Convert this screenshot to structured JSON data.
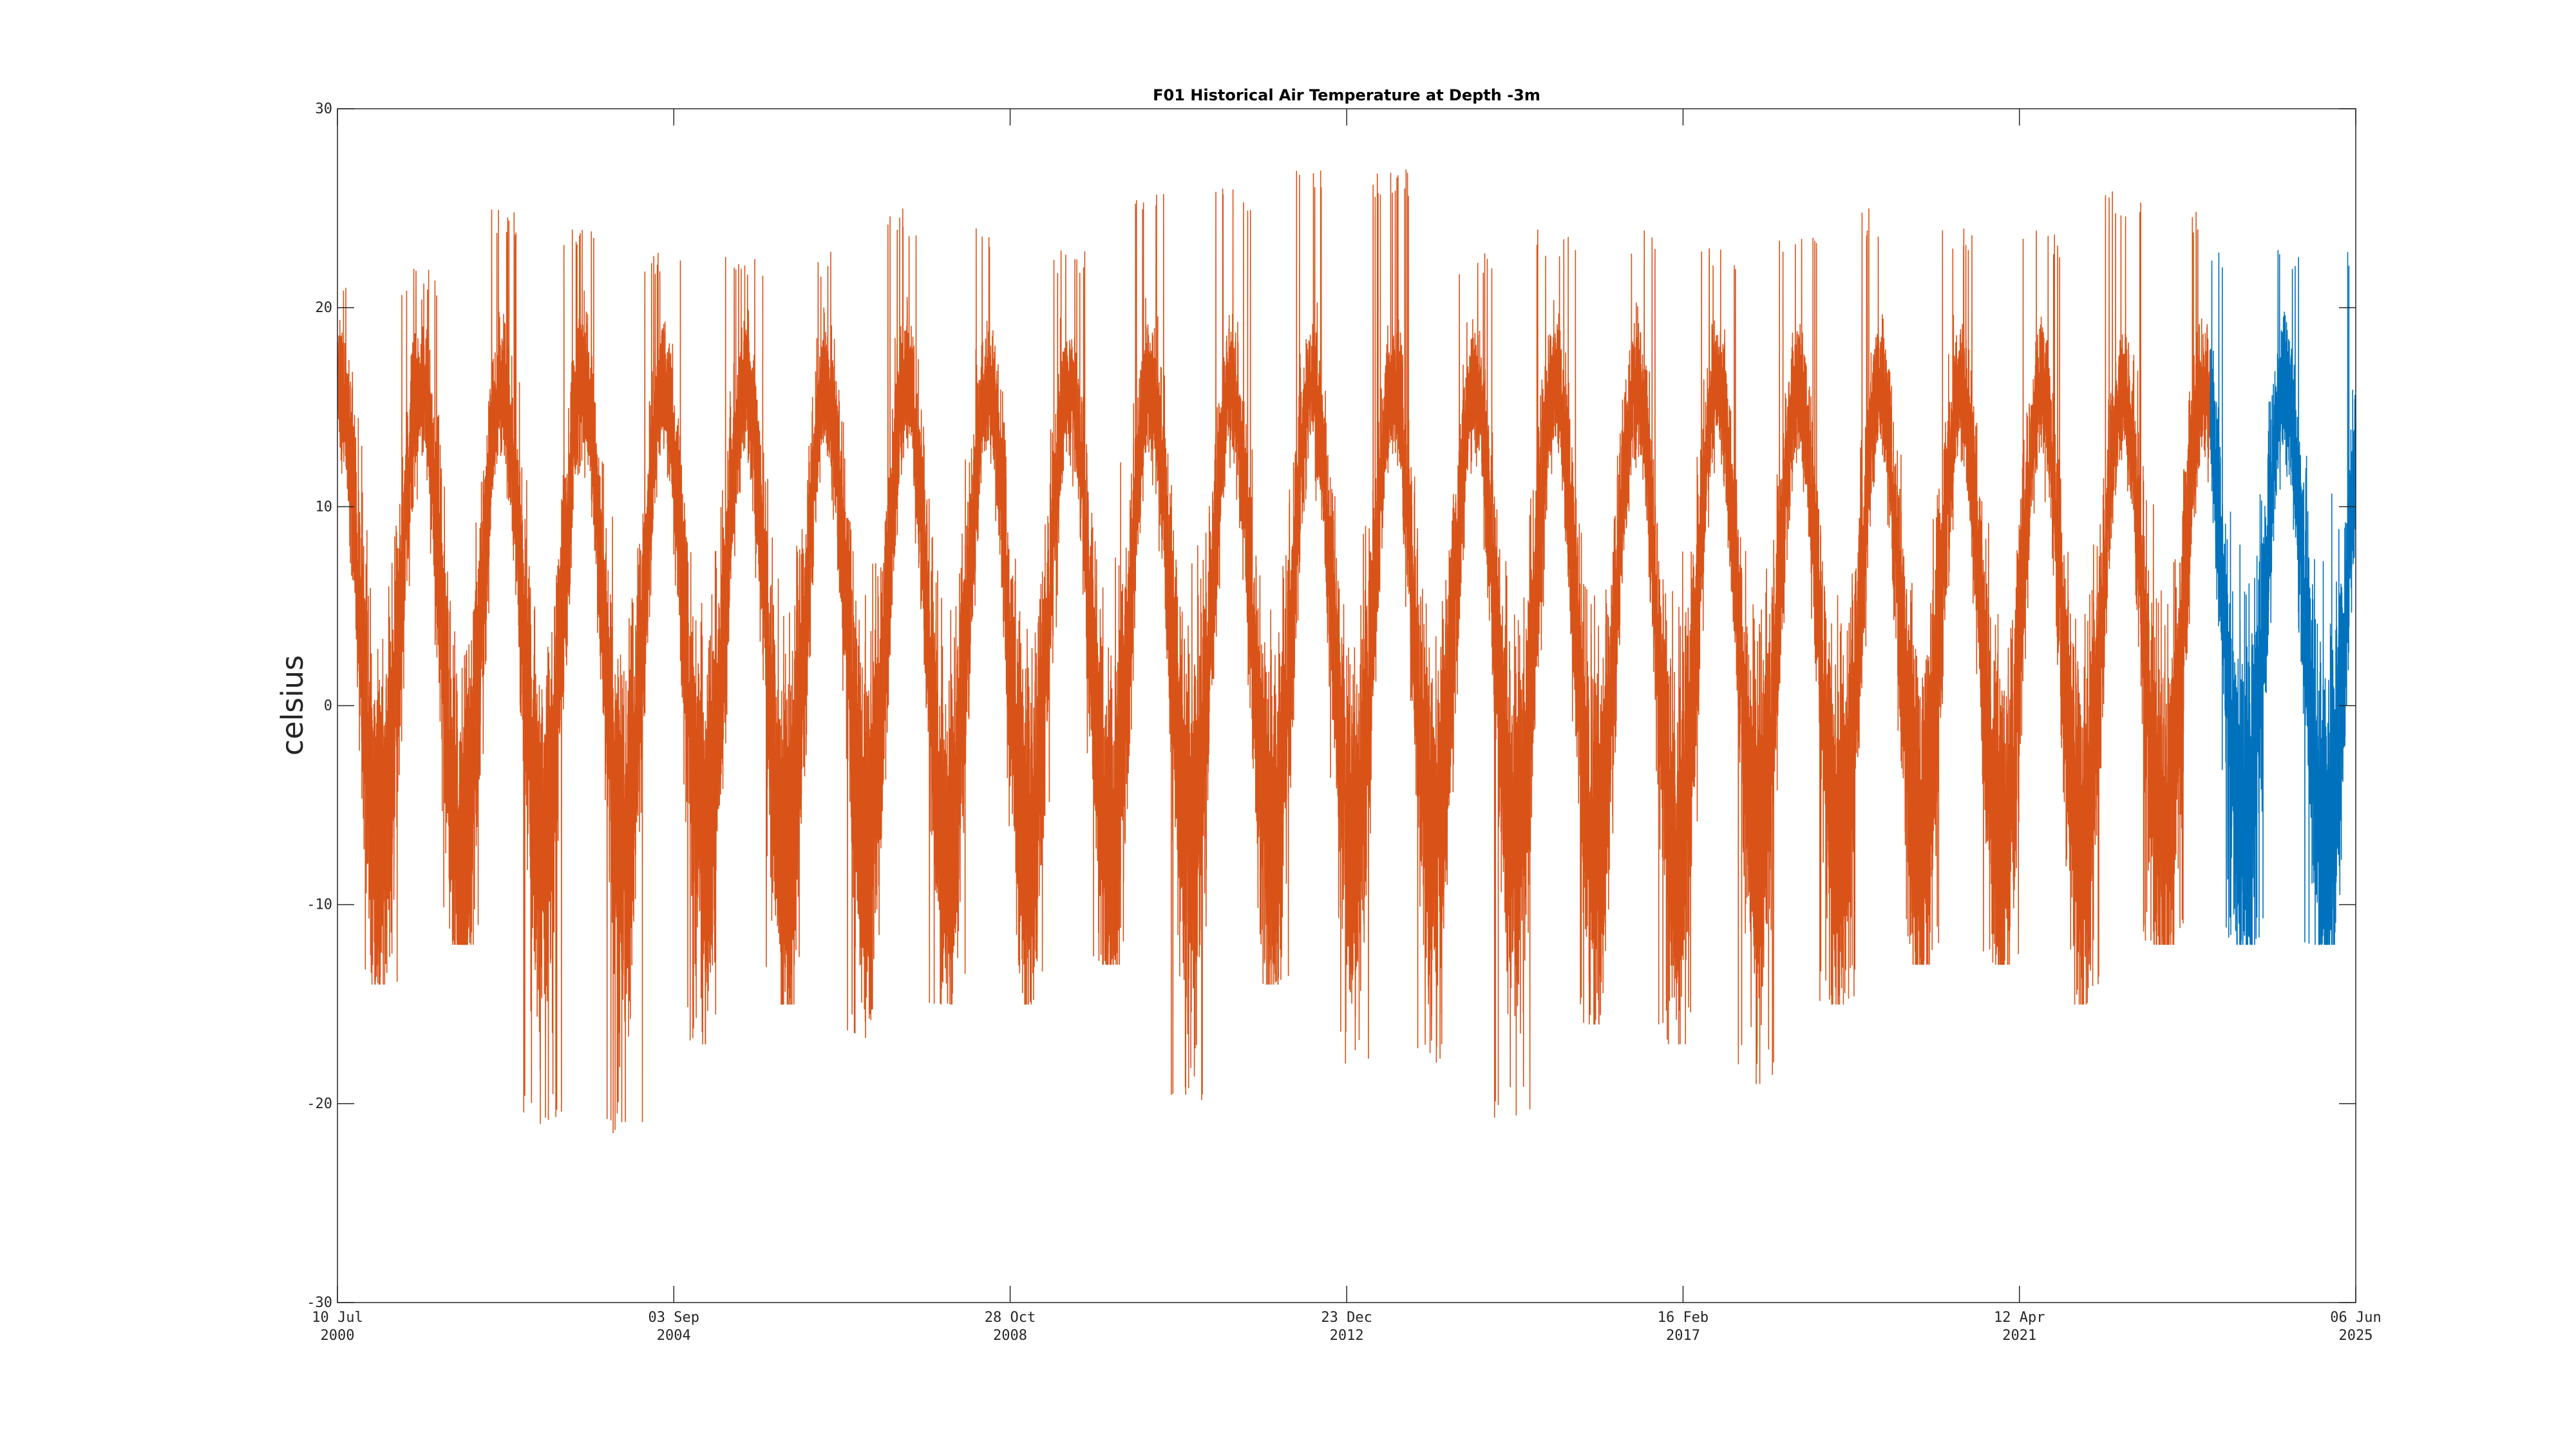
{
  "chart_data": {
    "type": "line",
    "title": "F01 Historical Air Temperature at Depth -3m",
    "xlabel": "",
    "ylabel": "celsius",
    "xlim": [
      "2000-07-10",
      "2025-06-06"
    ],
    "ylim": [
      -30,
      30
    ],
    "grid": false,
    "legend": "none",
    "y_ticks": [
      -30,
      -20,
      -10,
      0,
      10,
      20,
      30
    ],
    "x_ticks": [
      {
        "date": "2000-07-10",
        "line1": "10 Jul",
        "line2": "2000"
      },
      {
        "date": "2004-09-03",
        "line1": "03 Sep",
        "line2": "2004"
      },
      {
        "date": "2008-10-28",
        "line1": "28 Oct",
        "line2": "2008"
      },
      {
        "date": "2012-12-23",
        "line1": "23 Dec",
        "line2": "2012"
      },
      {
        "date": "2017-02-16",
        "line1": "16 Feb",
        "line2": "2017"
      },
      {
        "date": "2021-04-12",
        "line1": "12 Apr",
        "line2": "2021"
      },
      {
        "date": "2025-06-06",
        "line1": "06 Jun",
        "line2": "2025"
      }
    ],
    "series": [
      {
        "color": "#D95319",
        "date_range": [
          "2000-07-10",
          "2023-08-20"
        ],
        "summer_maxima": [
          {
            "date": "2000-08-01",
            "value": 22
          },
          {
            "date": "2001-07-20",
            "value": 22
          },
          {
            "date": "2002-07-20",
            "value": 25
          },
          {
            "date": "2003-07-20",
            "value": 24
          },
          {
            "date": "2004-07-20",
            "value": 23
          },
          {
            "date": "2005-07-20",
            "value": 23
          },
          {
            "date": "2006-07-20",
            "value": 23
          },
          {
            "date": "2007-07-20",
            "value": 25
          },
          {
            "date": "2008-07-20",
            "value": 24
          },
          {
            "date": "2009-07-20",
            "value": 23
          },
          {
            "date": "2010-07-20",
            "value": 26
          },
          {
            "date": "2011-07-20",
            "value": 26
          },
          {
            "date": "2012-07-20",
            "value": 27
          },
          {
            "date": "2013-07-20",
            "value": 27
          },
          {
            "date": "2014-07-20",
            "value": 23
          },
          {
            "date": "2015-07-20",
            "value": 24
          },
          {
            "date": "2016-07-20",
            "value": 24
          },
          {
            "date": "2017-07-20",
            "value": 23
          },
          {
            "date": "2018-07-20",
            "value": 24
          },
          {
            "date": "2019-07-20",
            "value": 25
          },
          {
            "date": "2020-07-20",
            "value": 24
          },
          {
            "date": "2021-07-20",
            "value": 24
          },
          {
            "date": "2022-07-20",
            "value": 26
          },
          {
            "date": "2023-07-20",
            "value": 25
          }
        ],
        "winter_minima": [
          {
            "date": "2001-01-20",
            "value": -14
          },
          {
            "date": "2002-01-20",
            "value": -12
          },
          {
            "date": "2003-01-20",
            "value": -21
          },
          {
            "date": "2004-01-20",
            "value": -22
          },
          {
            "date": "2005-01-20",
            "value": -17
          },
          {
            "date": "2006-01-20",
            "value": -15
          },
          {
            "date": "2007-01-20",
            "value": -17
          },
          {
            "date": "2008-01-20",
            "value": -15
          },
          {
            "date": "2009-01-20",
            "value": -15
          },
          {
            "date": "2010-01-20",
            "value": -13
          },
          {
            "date": "2011-01-20",
            "value": -20
          },
          {
            "date": "2012-01-20",
            "value": -14
          },
          {
            "date": "2013-01-20",
            "value": -18
          },
          {
            "date": "2014-01-20",
            "value": -18
          },
          {
            "date": "2015-01-20",
            "value": -21
          },
          {
            "date": "2016-01-20",
            "value": -16
          },
          {
            "date": "2017-01-20",
            "value": -17
          },
          {
            "date": "2018-01-20",
            "value": -19
          },
          {
            "date": "2019-01-20",
            "value": -15
          },
          {
            "date": "2020-01-20",
            "value": -13
          },
          {
            "date": "2021-01-20",
            "value": -13
          },
          {
            "date": "2022-01-20",
            "value": -15
          },
          {
            "date": "2023-01-20",
            "value": -12
          }
        ]
      },
      {
        "color": "#0072BD",
        "date_range": [
          "2023-08-20",
          "2025-06-06"
        ],
        "summer_maxima": [
          {
            "date": "2024-07-20",
            "value": 23
          }
        ],
        "winter_minima": [
          {
            "date": "2025-01-20",
            "value": -12
          }
        ]
      }
    ]
  }
}
